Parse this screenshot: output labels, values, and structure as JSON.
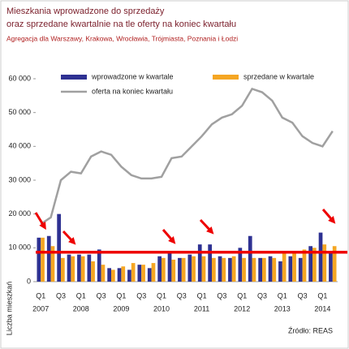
{
  "chart_data": {
    "type": "bar-line",
    "title": [
      "Mieszkania wprowadzone do sprzedaży",
      "oraz sprzedane kwartalnie na tle oferty na koniec kwartału"
    ],
    "subtitle": "Agregacja dla Warszawy, Krakowa, Wrocławia, Trójmiasta, Poznania i Łodzi",
    "y_label": "Liczba mieszkań",
    "source": "Źródło: REAS",
    "categories": [
      "Q1",
      null,
      "Q3",
      null,
      "Q1",
      null,
      "Q3",
      null,
      "Q1",
      null,
      "Q3",
      null,
      "Q1",
      null,
      "Q3",
      null,
      "Q1",
      null,
      "Q3",
      null,
      "Q1",
      null,
      "Q3",
      null,
      "Q1",
      null,
      "Q3",
      null,
      "Q1",
      null
    ],
    "years": [
      "2007",
      "2008",
      "2009",
      "2010",
      "2011",
      "2012",
      "2013",
      "2014"
    ],
    "series": [
      {
        "name": "wprowadzone w kwartale",
        "type": "bar",
        "color": "#2e3192",
        "values": [
          13000,
          13500,
          20000,
          8000,
          8000,
          8000,
          9500,
          4000,
          4000,
          3500,
          5000,
          4000,
          7500,
          8500,
          7000,
          8000,
          11000,
          11000,
          7500,
          7000,
          10000,
          13500,
          7000,
          7500,
          6000,
          7500,
          7000,
          10500,
          14500,
          9000
        ]
      },
      {
        "name": "sprzedane w kwartale",
        "type": "bar",
        "color": "#f5a623",
        "values": [
          13000,
          10500,
          7000,
          7500,
          7500,
          6000,
          5000,
          3500,
          4500,
          5500,
          5000,
          5500,
          7000,
          6500,
          7000,
          7500,
          7500,
          7000,
          7000,
          7500,
          7000,
          7000,
          7000,
          7000,
          8500,
          9000,
          9500,
          10000,
          11000,
          10500
        ]
      },
      {
        "name": "oferta na koniec kwartału",
        "type": "line",
        "color": "#a0a0a0",
        "values": [
          17000,
          19000,
          30000,
          32500,
          32000,
          37000,
          38500,
          37500,
          34000,
          31500,
          30500,
          30500,
          31000,
          36500,
          37000,
          40000,
          43000,
          46500,
          48500,
          49500,
          52000,
          57000,
          56000,
          53500,
          48500,
          47000,
          43000,
          41000,
          40000,
          44500
        ]
      }
    ],
    "reference_line": {
      "value": 8700,
      "color": "#ee0000"
    },
    "ylim": [
      0,
      60000
    ],
    "yticks": [
      0,
      {
        "value": 10000,
        "label": "10 000"
      },
      {
        "value": 20000,
        "label": "20 000"
      },
      {
        "value": 30000,
        "label": "30 000"
      },
      {
        "value": 40000,
        "label": "40 000"
      },
      {
        "value": 50000,
        "label": "50 000"
      },
      {
        "value": 60000,
        "label": "60 000"
      }
    ],
    "grid": false
  }
}
